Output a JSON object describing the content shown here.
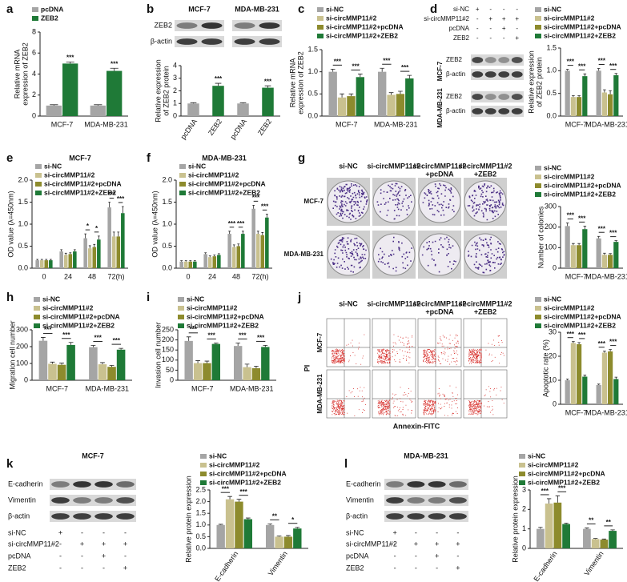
{
  "panel_labels": [
    "a",
    "b",
    "c",
    "d",
    "e",
    "f",
    "g",
    "h",
    "i",
    "j",
    "k",
    "l"
  ],
  "chart_data": [
    {
      "type": "bar",
      "categories": [
        "MCF-7",
        "MDA-MB-231"
      ],
      "series": [
        {
          "name": "pcDNA",
          "color": "#a5a5a5",
          "values": [
            1,
            1
          ],
          "errors": [
            0.08,
            0.08
          ]
        },
        {
          "name": "ZEB2",
          "color": "#1f7a37",
          "values": [
            5,
            4.3
          ],
          "errors": [
            0.15,
            0.25
          ]
        }
      ],
      "ylabel": [
        "Relative mRNA",
        "expression of ZEB2"
      ],
      "ylim": [
        0,
        8
      ],
      "yticks": [
        0,
        2,
        4,
        6,
        8
      ],
      "significance": [
        [
          "***"
        ],
        [
          "***"
        ]
      ]
    },
    {
      "type": "bar",
      "categories": [
        "pcDNA",
        "ZEB2",
        "pcDNA",
        "ZEB2"
      ],
      "values": [
        1,
        2.4,
        1,
        2.25
      ],
      "errors": [
        0.06,
        0.2,
        0.06,
        0.15
      ],
      "colors": [
        "#a5a5a5",
        "#1f7a37",
        "#a5a5a5",
        "#1f7a37"
      ],
      "ylabel": [
        "Relative expression",
        "of ZEB2 protein"
      ],
      "ylim": [
        0,
        4
      ],
      "yticks": [
        0,
        1,
        2,
        3,
        4
      ],
      "significance": [
        [],
        [
          "***"
        ],
        [],
        [
          "***"
        ]
      ]
    },
    {
      "type": "bar",
      "categories": [
        "MCF-7",
        "MDA-MB-231"
      ],
      "series": [
        {
          "name": "si-NC",
          "color": "#a5a5a5",
          "values": [
            1,
            1
          ],
          "errors": [
            0.06,
            0.08
          ]
        },
        {
          "name": "si-circMMP11#2",
          "color": "#c9c18f",
          "values": [
            0.42,
            0.48
          ],
          "errors": [
            0.08,
            0.05
          ]
        },
        {
          "name": "si-circMMP11#2+pcDNA",
          "color": "#8d8b2d",
          "values": [
            0.45,
            0.5
          ],
          "errors": [
            0.05,
            0.06
          ]
        },
        {
          "name": "si-circMMP11#2+ZEB2",
          "color": "#1f7a37",
          "values": [
            0.88,
            0.85
          ],
          "errors": [
            0.07,
            0.07
          ]
        }
      ],
      "ylabel": [
        "Relative mRNA",
        "expression of ZEB2"
      ],
      "ylim": [
        0,
        1.5
      ],
      "yticks": [
        {
          "value": 0,
          "label": "0.0"
        },
        0.5,
        {
          "value": 1,
          "label": "1.0"
        },
        1.5
      ],
      "significance": [
        [
          "***",
          "***"
        ],
        [
          "***",
          "***"
        ]
      ]
    },
    {
      "type": "bar",
      "categories": [
        "MCF-7",
        "MDA-MB-231"
      ],
      "series": [
        {
          "name": "si-NC",
          "color": "#a5a5a5",
          "values": [
            1,
            1
          ],
          "errors": [
            0.03,
            0.05
          ]
        },
        {
          "name": "si-circMMP11#2",
          "color": "#c9c18f",
          "values": [
            0.42,
            0.52
          ],
          "errors": [
            0.03,
            0.06
          ]
        },
        {
          "name": "si-circMMP11#2+pcDNA",
          "color": "#8d8b2d",
          "values": [
            0.42,
            0.48
          ],
          "errors": [
            0.03,
            0.08
          ]
        },
        {
          "name": "si-circMMP11#2+ZEB2",
          "color": "#1f7a37",
          "values": [
            0.88,
            0.9
          ],
          "errors": [
            0.05,
            0.04
          ]
        }
      ],
      "ylabel": [
        "Relative expression",
        "of ZEB2 protein"
      ],
      "ylim": [
        0,
        1.5
      ],
      "yticks": [
        {
          "value": 0,
          "label": "0.0"
        },
        0.5,
        {
          "value": 1,
          "label": "1.0"
        },
        1.5
      ],
      "significance": [
        [
          "***",
          "***"
        ],
        [
          "***",
          "***"
        ]
      ]
    },
    {
      "type": "bar",
      "title": "MCF-7",
      "categories": [
        "0",
        "24",
        "48",
        "72(h)"
      ],
      "series": [
        {
          "name": "si-NC",
          "color": "#a5a5a5",
          "values": [
            0.18,
            0.38,
            0.68,
            1.38
          ],
          "errors": [
            0.02,
            0.04,
            0.1,
            0.12
          ]
        },
        {
          "name": "si-circMMP11#2",
          "color": "#c9c18f",
          "values": [
            0.18,
            0.3,
            0.45,
            0.72
          ],
          "errors": [
            0.02,
            0.04,
            0.06,
            0.1
          ]
        },
        {
          "name": "si-circMMP11#2+pcDNA",
          "color": "#8d8b2d",
          "values": [
            0.18,
            0.32,
            0.48,
            0.72
          ],
          "errors": [
            0.02,
            0.03,
            0.06,
            0.1
          ]
        },
        {
          "name": "si-circMMP11#2+ZEB2",
          "color": "#1f7a37",
          "values": [
            0.18,
            0.38,
            0.65,
            1.25
          ],
          "errors": [
            0.02,
            0.04,
            0.08,
            0.15
          ]
        }
      ],
      "ylabel": [
        "OD value (λ=450nm)"
      ],
      "ylim": [
        0,
        2
      ],
      "yticks": [
        {
          "value": 0,
          "label": "0.0"
        },
        0.5,
        {
          "value": 1,
          "label": "1.0"
        },
        1.5,
        {
          "value": 2,
          "label": "2.0"
        }
      ],
      "significance": [
        [],
        [],
        [
          "*",
          "*"
        ],
        [
          "***",
          "***"
        ]
      ]
    },
    {
      "type": "bar",
      "title": "MDA-MB-231",
      "categories": [
        "0",
        "24",
        "48",
        "72(h)"
      ],
      "series": [
        {
          "name": "si-NC",
          "color": "#a5a5a5",
          "values": [
            0.15,
            0.32,
            0.78,
            1.35
          ],
          "errors": [
            0.02,
            0.03,
            0.06,
            0.08
          ]
        },
        {
          "name": "si-circMMP11#2",
          "color": "#c9c18f",
          "values": [
            0.15,
            0.25,
            0.48,
            0.78
          ],
          "errors": [
            0.02,
            0.03,
            0.05,
            0.06
          ]
        },
        {
          "name": "si-circMMP11#2+pcDNA",
          "color": "#8d8b2d",
          "values": [
            0.15,
            0.27,
            0.5,
            0.75
          ],
          "errors": [
            0.02,
            0.03,
            0.05,
            0.06
          ]
        },
        {
          "name": "si-circMMP11#2+ZEB2",
          "color": "#1f7a37",
          "values": [
            0.15,
            0.3,
            0.78,
            1.15
          ],
          "errors": [
            0.02,
            0.03,
            0.06,
            0.08
          ]
        }
      ],
      "ylabel": [
        "OD value (λ=450nm)"
      ],
      "ylim": [
        0,
        2
      ],
      "yticks": [
        {
          "value": 0,
          "label": "0.0"
        },
        0.5,
        {
          "value": 1,
          "label": "1.0"
        },
        1.5,
        {
          "value": 2,
          "label": "2.0"
        }
      ],
      "significance": [
        [],
        [],
        [
          "***",
          "***"
        ],
        [
          "***",
          "***"
        ]
      ]
    },
    {
      "type": "bar",
      "categories": [
        "MCF-7",
        "MDA-MB-231"
      ],
      "series": [
        {
          "name": "si-NC",
          "color": "#a5a5a5",
          "values": [
            205,
            145
          ],
          "errors": [
            15,
            10
          ]
        },
        {
          "name": "si-circMMP11#2",
          "color": "#c9c18f",
          "values": [
            112,
            65
          ],
          "errors": [
            8,
            8
          ]
        },
        {
          "name": "si-circMMP11#2+pcDNA",
          "color": "#8d8b2d",
          "values": [
            112,
            65
          ],
          "errors": [
            8,
            6
          ]
        },
        {
          "name": "si-circMMP11#2+ZEB2",
          "color": "#1f7a37",
          "values": [
            190,
            128
          ],
          "errors": [
            15,
            6
          ]
        }
      ],
      "ylabel": [
        "Number of colonies"
      ],
      "ylim": [
        0,
        300
      ],
      "yticks": [
        0,
        100,
        200,
        300
      ],
      "significance": [
        [
          "***",
          "***"
        ],
        [
          "***",
          "***"
        ]
      ]
    },
    {
      "type": "bar",
      "categories": [
        "MCF-7",
        "MDA-MB-231"
      ],
      "series": [
        {
          "name": "si-NC",
          "color": "#a5a5a5",
          "values": [
            235,
            197
          ],
          "errors": [
            20,
            10
          ]
        },
        {
          "name": "si-circMMP11#2",
          "color": "#c9c18f",
          "values": [
            98,
            95
          ],
          "errors": [
            10,
            10
          ]
        },
        {
          "name": "si-circMMP11#2+pcDNA",
          "color": "#8d8b2d",
          "values": [
            92,
            80
          ],
          "errors": [
            10,
            8
          ]
        },
        {
          "name": "si-circMMP11#2+ZEB2",
          "color": "#1f7a37",
          "values": [
            210,
            182
          ],
          "errors": [
            15,
            8
          ]
        }
      ],
      "ylabel": [
        "Migration cell number"
      ],
      "ylim": [
        0,
        300
      ],
      "yticks": [
        0,
        100,
        200,
        300
      ],
      "significance": [
        [
          "***",
          "***"
        ],
        [
          "***",
          "***"
        ]
      ]
    },
    {
      "type": "bar",
      "categories": [
        "MCF-7",
        "MDA-MB-231"
      ],
      "series": [
        {
          "name": "si-NC",
          "color": "#a5a5a5",
          "values": [
            195,
            170
          ],
          "errors": [
            20,
            15
          ]
        },
        {
          "name": "si-circMMP11#2",
          "color": "#c9c18f",
          "values": [
            85,
            65
          ],
          "errors": [
            12,
            15
          ]
        },
        {
          "name": "si-circMMP11#2+pcDNA",
          "color": "#8d8b2d",
          "values": [
            85,
            60
          ],
          "errors": [
            10,
            10
          ]
        },
        {
          "name": "si-circMMP11#2+ZEB2",
          "color": "#1f7a37",
          "values": [
            180,
            165
          ],
          "errors": [
            5,
            8
          ]
        }
      ],
      "ylabel": [
        "Invasion cell number"
      ],
      "ylim": [
        0,
        250
      ],
      "yticks": [
        0,
        50,
        100,
        150,
        200,
        250
      ],
      "significance": [
        [
          "***",
          "***"
        ],
        [
          "***",
          "***"
        ]
      ]
    },
    {
      "type": "bar",
      "categories": [
        "MCF-7",
        "MDA-MB-231"
      ],
      "series": [
        {
          "name": "si-NC",
          "color": "#a5a5a5",
          "values": [
            10,
            8
          ],
          "errors": [
            0.5,
            0.4
          ]
        },
        {
          "name": "si-circMMP11#2",
          "color": "#c9c18f",
          "values": [
            25.5,
            21.5
          ],
          "errors": [
            0.6,
            0.6
          ]
        },
        {
          "name": "si-circMMP11#2+pcDNA",
          "color": "#8d8b2d",
          "values": [
            25,
            22
          ],
          "errors": [
            0.7,
            0.8
          ]
        },
        {
          "name": "si-circMMP11#2+ZEB2",
          "color": "#1f7a37",
          "values": [
            11.5,
            10.5
          ],
          "errors": [
            0.6,
            0.8
          ]
        }
      ],
      "ylabel": [
        "Apoptotic rate (%)"
      ],
      "ylim": [
        0,
        30
      ],
      "yticks": [
        0,
        10,
        20,
        30
      ],
      "significance": [
        [
          "***",
          "***"
        ],
        [
          "***",
          "***"
        ]
      ]
    },
    {
      "type": "bar",
      "categories": [
        "E-cadherin",
        "Vimentin"
      ],
      "series": [
        {
          "name": "si-NC",
          "color": "#a5a5a5",
          "values": [
            1,
            1
          ],
          "errors": [
            0.03,
            0.05
          ]
        },
        {
          "name": "si-circMMP11#2",
          "color": "#c9c18f",
          "values": [
            2.1,
            0.5
          ],
          "errors": [
            0.12,
            0.03
          ]
        },
        {
          "name": "si-circMMP11#2+pcDNA",
          "color": "#8d8b2d",
          "values": [
            2,
            0.5
          ],
          "errors": [
            0.1,
            0.05
          ]
        },
        {
          "name": "si-circMMP11#2+ZEB2",
          "color": "#1f7a37",
          "values": [
            1.25,
            0.85
          ],
          "errors": [
            0.05,
            0.05
          ]
        }
      ],
      "ylabel": [
        "Relative protein expression"
      ],
      "ylim": [
        0,
        2.5
      ],
      "yticks": [
        {
          "value": 0,
          "label": "0.0"
        },
        0.5,
        {
          "value": 1,
          "label": "1.0"
        },
        1.5,
        {
          "value": 2,
          "label": "2.0"
        },
        2.5
      ],
      "significance": [
        [
          "***",
          "***"
        ],
        [
          "**",
          "*"
        ]
      ]
    },
    {
      "type": "bar",
      "categories": [
        "E-cadherin",
        "Vimentin"
      ],
      "series": [
        {
          "name": "si-NC",
          "color": "#a5a5a5",
          "values": [
            1,
            1
          ],
          "errors": [
            0.08,
            0.05
          ]
        },
        {
          "name": "si-circMMP11#2",
          "color": "#c9c18f",
          "values": [
            2.3,
            0.48
          ],
          "errors": [
            0.25,
            0.03
          ]
        },
        {
          "name": "si-circMMP11#2+pcDNA",
          "color": "#8d8b2d",
          "values": [
            2.35,
            0.45
          ],
          "errors": [
            0.35,
            0.03
          ]
        },
        {
          "name": "si-circMMP11#2+ZEB2",
          "color": "#1f7a37",
          "values": [
            1.25,
            0.9
          ],
          "errors": [
            0.05,
            0.05
          ]
        }
      ],
      "ylabel": [
        "Relative protein expression"
      ],
      "ylim": [
        0,
        3
      ],
      "yticks": [
        0,
        1,
        2,
        3
      ],
      "significance": [
        [
          "***",
          "***"
        ],
        [
          "**",
          "**"
        ]
      ]
    }
  ],
  "blots": [
    {
      "columns": [
        "MCF-7",
        "MDA-MB-231"
      ],
      "rows": [
        "ZEB2",
        "β-actin"
      ]
    },
    {
      "groups": [
        {
          "name": "MCF-7",
          "rows": [
            "ZEB2",
            "β-actin"
          ]
        },
        {
          "name": "MDA-MB-231",
          "rows": [
            "ZEB2",
            "β-actin"
          ]
        }
      ],
      "matrix": {
        "rows": [
          "si-NC",
          "si-circMMP11#2",
          "pcDNA",
          "ZEB2"
        ],
        "signs": [
          [
            "+",
            "-",
            "-",
            "-"
          ],
          [
            "-",
            "+",
            "+",
            "+"
          ],
          [
            "-",
            "-",
            "+",
            "-"
          ],
          [
            "-",
            "-",
            "-",
            "+"
          ]
        ]
      }
    },
    {
      "title": "MCF-7",
      "rows": [
        "E-cadherin",
        "Vimentin",
        "β-actin"
      ],
      "matrix": {
        "rows": [
          "si-NC",
          "si-circMMP11#2",
          "pcDNA",
          "ZEB2"
        ],
        "signs": [
          [
            "+",
            "-",
            "-",
            "-"
          ],
          [
            "-",
            "+",
            "+",
            "+"
          ],
          [
            "-",
            "-",
            "+",
            "-"
          ],
          [
            "-",
            "-",
            "-",
            "+"
          ]
        ]
      }
    },
    {
      "title": "MDA-MB-231",
      "rows": [
        "E-cadherin",
        "Vimentin",
        "β-actin"
      ],
      "matrix": {
        "rows": [
          "si-NC",
          "si-circMMP11#2",
          "pcDNA",
          "ZEB2"
        ],
        "signs": [
          [
            "+",
            "-",
            "-",
            "-"
          ],
          [
            "-",
            "+",
            "+",
            "+"
          ],
          [
            "-",
            "-",
            "+",
            "-"
          ],
          [
            "-",
            "-",
            "-",
            "+"
          ]
        ]
      }
    }
  ],
  "images": [
    {
      "columns": [
        [
          "si-NC"
        ],
        [
          "si-circMMP11#2"
        ],
        [
          "si-circMMP11#2",
          "+pcDNA"
        ],
        [
          "si-circMMP11#2",
          "+ZEB2"
        ]
      ],
      "rows": [
        "MCF-7",
        "MDA-MB-231"
      ]
    },
    {
      "columns": [
        [
          "si-NC"
        ],
        [
          "si-circMMP11#2"
        ],
        [
          "si-circMMP11#2",
          "+pcDNA"
        ],
        [
          "si-circMMP11#2",
          "+ZEB2"
        ]
      ],
      "rows": [
        "MCF-7",
        "MDA-MB-231"
      ],
      "y_label": "PI",
      "x_label": "Annexin-FITC"
    }
  ]
}
